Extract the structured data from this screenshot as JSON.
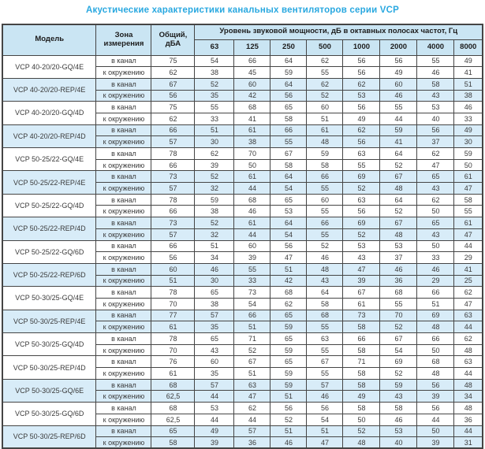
{
  "title": "Акустические характеристики канальных вентиляторов  серии VCP",
  "colors": {
    "title": "#29a8e0",
    "header_bg": "#cae5f3",
    "row_highlight_bg": "#d8ecf8",
    "row_bg": "#ffffff",
    "border": "#454545",
    "text": "#3a3a3a"
  },
  "table": {
    "header": {
      "model": "Модель",
      "zone": "Зона измерения",
      "total_line1": "Общий,",
      "total_line2": "дБА",
      "spl": "Уровень звуковой мощности, дБ в октавных полосах частот, Гц",
      "freqs": [
        "63",
        "125",
        "250",
        "500",
        "1000",
        "2000",
        "4000",
        "8000"
      ]
    },
    "models": [
      {
        "model": "VCP 40-20/20-GQ/4E",
        "highlight": false,
        "rows": [
          {
            "zone": "в канал",
            "total": "75",
            "values": [
              54,
              66,
              64,
              62,
              56,
              56,
              55,
              49
            ]
          },
          {
            "zone": "к окружению",
            "total": "62",
            "values": [
              38,
              45,
              59,
              55,
              56,
              49,
              46,
              41
            ]
          }
        ]
      },
      {
        "model": "VCP 40-20/20-REP/4E",
        "highlight": true,
        "rows": [
          {
            "zone": "в канал",
            "total": "67",
            "values": [
              52,
              60,
              64,
              62,
              62,
              60,
              58,
              51
            ]
          },
          {
            "zone": "к окружению",
            "total": "56",
            "values": [
              35,
              42,
              56,
              52,
              53,
              46,
              43,
              38
            ]
          }
        ]
      },
      {
        "model": "VCP 40-20/20-GQ/4D",
        "highlight": false,
        "rows": [
          {
            "zone": "в канал",
            "total": "75",
            "values": [
              55,
              68,
              65,
              60,
              56,
              55,
              53,
              46
            ]
          },
          {
            "zone": "к окружению",
            "total": "62",
            "values": [
              33,
              41,
              58,
              51,
              49,
              44,
              40,
              33
            ]
          }
        ]
      },
      {
        "model": "VCP 40-20/20-REP/4D",
        "highlight": true,
        "rows": [
          {
            "zone": "в канал",
            "total": "66",
            "values": [
              51,
              61,
              66,
              61,
              62,
              59,
              56,
              49
            ]
          },
          {
            "zone": "к окружению",
            "total": "57",
            "values": [
              30,
              38,
              55,
              48,
              56,
              41,
              37,
              30
            ]
          }
        ]
      },
      {
        "model": "VCP 50-25/22-GQ/4E",
        "highlight": false,
        "rows": [
          {
            "zone": "в канал",
            "total": "78",
            "values": [
              62,
              70,
              67,
              59,
              63,
              64,
              62,
              59
            ]
          },
          {
            "zone": "к окружению",
            "total": "66",
            "values": [
              39,
              50,
              58,
              58,
              55,
              52,
              47,
              50
            ]
          }
        ]
      },
      {
        "model": "VCP 50-25/22-REP/4E",
        "highlight": true,
        "rows": [
          {
            "zone": "в канал",
            "total": "73",
            "values": [
              52,
              61,
              64,
              66,
              69,
              67,
              65,
              61
            ]
          },
          {
            "zone": "к окружению",
            "total": "57",
            "values": [
              32,
              44,
              54,
              55,
              52,
              48,
              43,
              47
            ]
          }
        ]
      },
      {
        "model": "VCP 50-25/22-GQ/4D",
        "highlight": false,
        "rows": [
          {
            "zone": "в канал",
            "total": "78",
            "values": [
              59,
              68,
              65,
              60,
              63,
              64,
              62,
              58
            ]
          },
          {
            "zone": "к окружению",
            "total": "66",
            "values": [
              38,
              46,
              53,
              55,
              56,
              52,
              50,
              55
            ]
          }
        ]
      },
      {
        "model": "VCP 50-25/22-REP/4D",
        "highlight": true,
        "rows": [
          {
            "zone": "в канал",
            "total": "73",
            "values": [
              52,
              61,
              64,
              66,
              69,
              67,
              65,
              61
            ]
          },
          {
            "zone": "к окружению",
            "total": "57",
            "values": [
              32,
              44,
              54,
              55,
              52,
              48,
              43,
              47
            ]
          }
        ]
      },
      {
        "model": "VCP 50-25/22-GQ/6D",
        "highlight": false,
        "rows": [
          {
            "zone": "в канал",
            "total": "66",
            "values": [
              51,
              60,
              56,
              52,
              53,
              53,
              50,
              44
            ]
          },
          {
            "zone": "к окружению",
            "total": "56",
            "values": [
              34,
              39,
              47,
              46,
              43,
              37,
              33,
              29
            ]
          }
        ]
      },
      {
        "model": "VCP 50-25/22-REP/6D",
        "highlight": true,
        "rows": [
          {
            "zone": "в канал",
            "total": "60",
            "values": [
              46,
              55,
              51,
              48,
              47,
              46,
              46,
              41
            ]
          },
          {
            "zone": "к окружению",
            "total": "51",
            "values": [
              30,
              33,
              42,
              43,
              39,
              36,
              29,
              25
            ]
          }
        ]
      },
      {
        "model": "VCP 50-30/25-GQ/4E",
        "highlight": false,
        "rows": [
          {
            "zone": "в канал",
            "total": "78",
            "values": [
              65,
              73,
              68,
              64,
              67,
              68,
              66,
              62
            ]
          },
          {
            "zone": "к окружению",
            "total": "70",
            "values": [
              38,
              54,
              62,
              58,
              61,
              55,
              51,
              47
            ]
          }
        ]
      },
      {
        "model": "VCP 50-30/25-REP/4E",
        "highlight": true,
        "rows": [
          {
            "zone": "в канал",
            "total": "77",
            "values": [
              57,
              66,
              65,
              68,
              73,
              70,
              69,
              63
            ]
          },
          {
            "zone": "к окружению",
            "total": "61",
            "values": [
              35,
              51,
              59,
              55,
              58,
              52,
              48,
              44
            ]
          }
        ]
      },
      {
        "model": "VCP 50-30/25-GQ/4D",
        "highlight": false,
        "rows": [
          {
            "zone": "в канал",
            "total": "78",
            "values": [
              65,
              71,
              65,
              63,
              66,
              67,
              66,
              62
            ]
          },
          {
            "zone": "к окружению",
            "total": "70",
            "values": [
              43,
              52,
              59,
              55,
              58,
              54,
              50,
              48
            ]
          }
        ]
      },
      {
        "model": "VCP 50-30/25-REP/4D",
        "highlight": false,
        "rows": [
          {
            "zone": "в канал",
            "total": "76",
            "values": [
              60,
              67,
              65,
              67,
              71,
              69,
              68,
              63
            ]
          },
          {
            "zone": "к окружению",
            "total": "61",
            "values": [
              35,
              51,
              59,
              55,
              58,
              52,
              48,
              44
            ]
          }
        ]
      },
      {
        "model": "VCP 50-30/25-GQ/6E",
        "highlight": true,
        "rows": [
          {
            "zone": "в канал",
            "total": "68",
            "values": [
              57,
              63,
              59,
              57,
              58,
              59,
              56,
              48
            ]
          },
          {
            "zone": "к окружению",
            "total": "62,5",
            "values": [
              44,
              47,
              51,
              46,
              49,
              43,
              39,
              34
            ]
          }
        ]
      },
      {
        "model": "VCP 50-30/25-GQ/6D",
        "highlight": false,
        "rows": [
          {
            "zone": "в канал",
            "total": "68",
            "values": [
              53,
              62,
              56,
              56,
              58,
              58,
              56,
              48
            ]
          },
          {
            "zone": "к окружению",
            "total": "62,5",
            "values": [
              44,
              44,
              52,
              54,
              50,
              46,
              44,
              36
            ]
          }
        ]
      },
      {
        "model": "VCP 50-30/25-REP/6D",
        "highlight": true,
        "rows": [
          {
            "zone": "в канал",
            "total": "65",
            "values": [
              49,
              57,
              51,
              51,
              52,
              53,
              50,
              44
            ]
          },
          {
            "zone": "к окружению",
            "total": "58",
            "values": [
              39,
              36,
              46,
              47,
              48,
              40,
              39,
              31
            ]
          }
        ]
      }
    ]
  }
}
